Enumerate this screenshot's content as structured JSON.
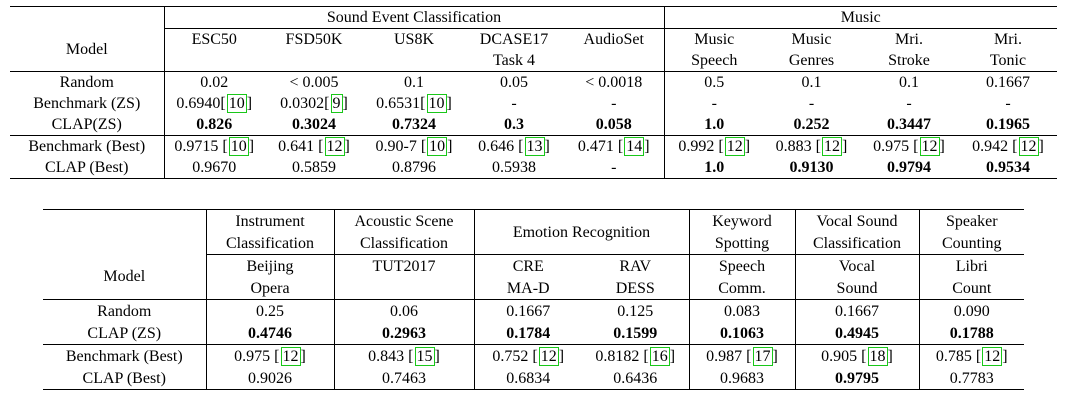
{
  "table1": {
    "group_headers": {
      "sec": "Sound Event Classification",
      "music": "Music"
    },
    "model_header": "Model",
    "columns": [
      {
        "l1": "ESC50",
        "l2": ""
      },
      {
        "l1": "FSD50K",
        "l2": ""
      },
      {
        "l1": "US8K",
        "l2": ""
      },
      {
        "l1": "DCASE17",
        "l2": "Task 4"
      },
      {
        "l1": "AudioSet",
        "l2": ""
      },
      {
        "l1": "Music",
        "l2": "Speech"
      },
      {
        "l1": "Music",
        "l2": "Genres"
      },
      {
        "l1": "Mri.",
        "l2": "Stroke"
      },
      {
        "l1": "Mri.",
        "l2": "Tonic"
      }
    ],
    "rows": [
      {
        "model": "Random",
        "cells": [
          {
            "v": "0.02"
          },
          {
            "v": "< 0.005"
          },
          {
            "v": "0.1"
          },
          {
            "v": "0.05"
          },
          {
            "v": "< 0.0018"
          },
          {
            "v": "0.5"
          },
          {
            "v": "0.1"
          },
          {
            "v": "0.1"
          },
          {
            "v": "0.1667"
          }
        ]
      },
      {
        "model": "Benchmark (ZS)",
        "cells": [
          {
            "v": "0.6940",
            "c": "10"
          },
          {
            "v": "0.0302",
            "c": "9"
          },
          {
            "v": "0.6531",
            "c": "10"
          },
          {
            "v": "-"
          },
          {
            "v": "-"
          },
          {
            "v": "-"
          },
          {
            "v": "-"
          },
          {
            "v": "-"
          },
          {
            "v": "-"
          }
        ]
      },
      {
        "model": "CLAP(ZS)",
        "cells": [
          {
            "v": "0.826",
            "b": true
          },
          {
            "v": "0.3024",
            "b": true
          },
          {
            "v": "0.7324",
            "b": true
          },
          {
            "v": "0.3",
            "b": true
          },
          {
            "v": "0.058",
            "b": true
          },
          {
            "v": "1.0",
            "b": true
          },
          {
            "v": "0.252",
            "b": true
          },
          {
            "v": "0.3447",
            "b": true
          },
          {
            "v": "0.1965",
            "b": true
          }
        ]
      },
      {
        "model": "Benchmark (Best)",
        "cells": [
          {
            "v": "0.9715 ",
            "c": "10"
          },
          {
            "v": "0.641 ",
            "c": "12"
          },
          {
            "v": "0.90-7 ",
            "c": "10"
          },
          {
            "v": "0.646 ",
            "c": "13"
          },
          {
            "v": "0.471 ",
            "c": "14"
          },
          {
            "v": "0.992 ",
            "c": "12"
          },
          {
            "v": "0.883 ",
            "c": "12"
          },
          {
            "v": "0.975 ",
            "c": "12"
          },
          {
            "v": "0.942 ",
            "c": "12"
          }
        ]
      },
      {
        "model": "CLAP (Best)",
        "cells": [
          {
            "v": "0.9670"
          },
          {
            "v": "0.5859"
          },
          {
            "v": "0.8796"
          },
          {
            "v": "0.5938"
          },
          {
            "v": "-"
          },
          {
            "v": "1.0",
            "b": true
          },
          {
            "v": "0.9130",
            "b": true
          },
          {
            "v": "0.9794",
            "b": true
          },
          {
            "v": "0.9534",
            "b": true
          }
        ]
      }
    ]
  },
  "table2": {
    "model_header": "Model",
    "task_headers": [
      {
        "l1": "Instrument",
        "l2": "Classification"
      },
      {
        "l1": "Acoustic Scene",
        "l2": "Classification"
      },
      {
        "l1": "Emotion Recognition",
        "l2": ""
      },
      {
        "l1": "Keyword",
        "l2": "Spotting"
      },
      {
        "l1": "Vocal Sound",
        "l2": "Classification"
      },
      {
        "l1": "Speaker",
        "l2": "Counting"
      }
    ],
    "columns": [
      {
        "l1": "Beijing",
        "l2": "Opera"
      },
      {
        "l1": "TUT2017",
        "l2": ""
      },
      {
        "l1": "CRE",
        "l2": "MA-D"
      },
      {
        "l1": "RAV",
        "l2": "DESS"
      },
      {
        "l1": "Speech",
        "l2": "Comm."
      },
      {
        "l1": "Vocal",
        "l2": "Sound"
      },
      {
        "l1": "Libri",
        "l2": "Count"
      }
    ],
    "rows": [
      {
        "model": "Random",
        "cells": [
          {
            "v": "0.25"
          },
          {
            "v": "0.06"
          },
          {
            "v": "0.1667"
          },
          {
            "v": "0.125"
          },
          {
            "v": "0.083"
          },
          {
            "v": "0.1667"
          },
          {
            "v": "0.090"
          }
        ]
      },
      {
        "model": "CLAP (ZS)",
        "cells": [
          {
            "v": "0.4746",
            "b": true
          },
          {
            "v": "0.2963",
            "b": true
          },
          {
            "v": "0.1784",
            "b": true
          },
          {
            "v": "0.1599",
            "b": true
          },
          {
            "v": "0.1063",
            "b": true
          },
          {
            "v": "0.4945",
            "b": true
          },
          {
            "v": "0.1788",
            "b": true
          }
        ]
      },
      {
        "model": "Benchmark (Best)",
        "cells": [
          {
            "v": "0.975 ",
            "c": "12"
          },
          {
            "v": "0.843 ",
            "c": "15"
          },
          {
            "v": "0.752 ",
            "c": "12"
          },
          {
            "v": "0.8182 ",
            "c": "16"
          },
          {
            "v": "0.987 ",
            "c": "17"
          },
          {
            "v": "0.905 ",
            "c": "18"
          },
          {
            "v": "0.785 ",
            "c": "12"
          }
        ]
      },
      {
        "model": "CLAP (Best)",
        "cells": [
          {
            "v": "0.9026"
          },
          {
            "v": "0.7463"
          },
          {
            "v": "0.6834"
          },
          {
            "v": "0.6436"
          },
          {
            "v": "0.9683"
          },
          {
            "v": "0.9795",
            "b": true
          },
          {
            "v": "0.7783"
          }
        ]
      }
    ]
  }
}
